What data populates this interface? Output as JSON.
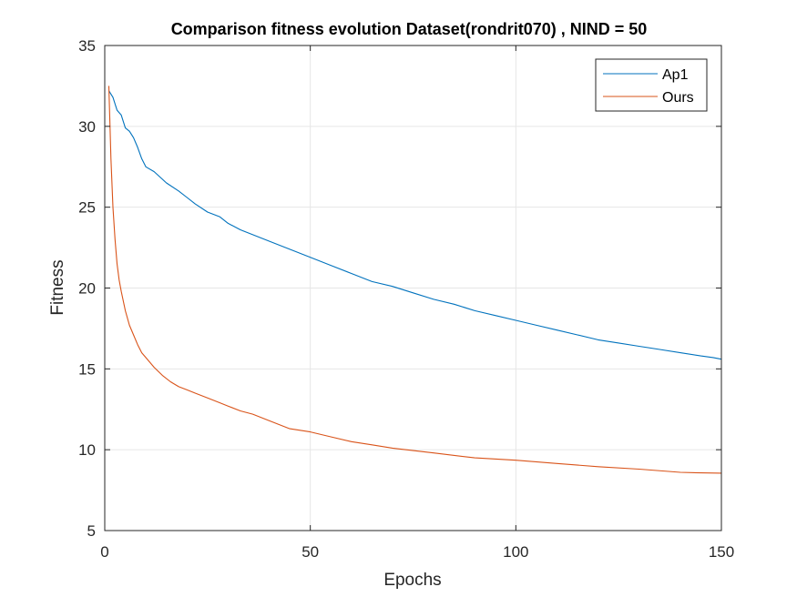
{
  "colors": {
    "ap1": "#0072BD",
    "ours": "#D95319",
    "grid": "#e6e6e6",
    "axis": "#262626"
  },
  "chart_data": {
    "type": "line",
    "title": "Comparison fitness evolution Dataset(rondrit070) , NIND = 50",
    "xlabel": "Epochs",
    "ylabel": "Fitness",
    "xlim": [
      0,
      150
    ],
    "ylim": [
      5,
      35
    ],
    "xticks": [
      0,
      50,
      100,
      150
    ],
    "yticks": [
      5,
      10,
      15,
      20,
      25,
      30,
      35
    ],
    "grid": true,
    "legend_position": "top-right",
    "series": [
      {
        "name": "Ap1",
        "color": "#0072BD",
        "x": [
          1,
          2,
          3,
          4,
          5,
          6,
          7,
          8,
          9,
          10,
          12,
          15,
          18,
          20,
          22,
          25,
          28,
          30,
          33,
          36,
          40,
          45,
          50,
          55,
          60,
          65,
          70,
          75,
          80,
          85,
          90,
          95,
          100,
          105,
          110,
          115,
          120,
          125,
          130,
          135,
          140,
          145,
          148,
          150
        ],
        "y": [
          32.2,
          31.8,
          31.0,
          30.7,
          29.9,
          29.7,
          29.3,
          28.7,
          28.0,
          27.5,
          27.2,
          26.5,
          26.0,
          25.6,
          25.2,
          24.7,
          24.4,
          24.0,
          23.6,
          23.3,
          22.9,
          22.4,
          21.9,
          21.4,
          20.9,
          20.4,
          20.1,
          19.7,
          19.3,
          19.0,
          18.6,
          18.3,
          18.0,
          17.7,
          17.4,
          17.1,
          16.8,
          16.6,
          16.4,
          16.2,
          16.0,
          15.8,
          15.7,
          15.6
        ]
      },
      {
        "name": "Ours",
        "color": "#D95319",
        "x": [
          1,
          1.5,
          2,
          2.5,
          3,
          3.5,
          4,
          5,
          6,
          7,
          8,
          9,
          10,
          12,
          14,
          16,
          18,
          20,
          22,
          25,
          28,
          30,
          33,
          36,
          40,
          45,
          50,
          55,
          60,
          65,
          70,
          80,
          90,
          100,
          110,
          120,
          130,
          140,
          145,
          150
        ],
        "y": [
          32.5,
          28.0,
          25.0,
          23.0,
          21.5,
          20.5,
          19.8,
          18.6,
          17.7,
          17.1,
          16.5,
          16.0,
          15.7,
          15.1,
          14.6,
          14.2,
          13.9,
          13.7,
          13.5,
          13.2,
          12.9,
          12.7,
          12.4,
          12.2,
          11.8,
          11.3,
          11.1,
          10.8,
          10.5,
          10.3,
          10.1,
          9.8,
          9.5,
          9.35,
          9.15,
          8.95,
          8.8,
          8.6,
          8.57,
          8.55
        ]
      }
    ]
  }
}
